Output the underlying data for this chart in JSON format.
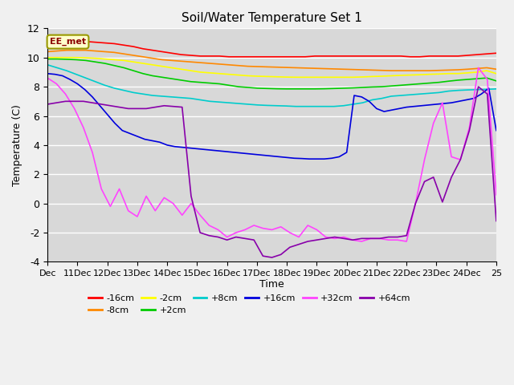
{
  "title": "Soil/Water Temperature Set 1",
  "xlabel": "Time",
  "ylabel": "Temperature (C)",
  "ylim": [
    -4,
    12
  ],
  "annotation": "EE_met",
  "x_ticks": [
    "Dec",
    "11Dec",
    "12Dec",
    "13Dec",
    "14Dec",
    "15Dec",
    "16Dec",
    "17Dec",
    "18Dec",
    "19Dec",
    "20Dec",
    "21Dec",
    "22Dec",
    "23Dec",
    "24Dec",
    "25"
  ],
  "series_order": [
    "-16cm",
    "-8cm",
    "-2cm",
    "+2cm",
    "+8cm",
    "+16cm",
    "+32cm",
    "+64cm"
  ],
  "series": {
    "-16cm": {
      "color": "#ff0000",
      "data": [
        10.9,
        10.95,
        11.0,
        11.05,
        11.1,
        11.05,
        11.0,
        10.95,
        10.85,
        10.75,
        10.6,
        10.5,
        10.4,
        10.3,
        10.2,
        10.15,
        10.1,
        10.1,
        10.1,
        10.05,
        10.05,
        10.05,
        10.05,
        10.05,
        10.05,
        10.05,
        10.05,
        10.05,
        10.1,
        10.1,
        10.1,
        10.1,
        10.1,
        10.1,
        10.1,
        10.1,
        10.1,
        10.1,
        10.05,
        10.05,
        10.1,
        10.1,
        10.1,
        10.1,
        10.15,
        10.2,
        10.25,
        10.3
      ]
    },
    "-8cm": {
      "color": "#ff8800",
      "data": [
        10.4,
        10.45,
        10.5,
        10.5,
        10.5,
        10.45,
        10.4,
        10.35,
        10.25,
        10.15,
        10.05,
        9.95,
        9.85,
        9.8,
        9.75,
        9.7,
        9.65,
        9.6,
        9.55,
        9.5,
        9.45,
        9.4,
        9.38,
        9.36,
        9.34,
        9.32,
        9.3,
        9.28,
        9.26,
        9.24,
        9.22,
        9.2,
        9.18,
        9.16,
        9.14,
        9.12,
        9.1,
        9.1,
        9.1,
        9.1,
        9.1,
        9.12,
        9.14,
        9.16,
        9.2,
        9.25,
        9.3,
        9.2
      ]
    },
    "-2cm": {
      "color": "#ffff00",
      "data": [
        10.0,
        10.0,
        10.0,
        10.0,
        9.98,
        9.95,
        9.9,
        9.85,
        9.8,
        9.7,
        9.6,
        9.5,
        9.4,
        9.3,
        9.2,
        9.1,
        9.0,
        8.95,
        8.9,
        8.85,
        8.8,
        8.75,
        8.72,
        8.7,
        8.68,
        8.66,
        8.65,
        8.65,
        8.65,
        8.65,
        8.65,
        8.65,
        8.65,
        8.67,
        8.7,
        8.72,
        8.75,
        8.78,
        8.8,
        8.82,
        8.85,
        8.87,
        8.9,
        8.9,
        8.95,
        9.0,
        9.1,
        8.9
      ]
    },
    "+2cm": {
      "color": "#00cc00",
      "data": [
        9.9,
        9.9,
        9.88,
        9.85,
        9.8,
        9.7,
        9.6,
        9.45,
        9.3,
        9.1,
        8.9,
        8.75,
        8.65,
        8.55,
        8.45,
        8.35,
        8.3,
        8.25,
        8.2,
        8.1,
        8.0,
        7.95,
        7.9,
        7.88,
        7.86,
        7.85,
        7.85,
        7.85,
        7.85,
        7.86,
        7.88,
        7.9,
        7.92,
        7.95,
        7.98,
        8.0,
        8.05,
        8.1,
        8.15,
        8.2,
        8.25,
        8.3,
        8.38,
        8.45,
        8.5,
        8.55,
        8.6,
        8.4
      ]
    },
    "+8cm": {
      "color": "#00cccc",
      "data": [
        9.5,
        9.3,
        9.1,
        8.85,
        8.6,
        8.35,
        8.1,
        7.9,
        7.75,
        7.6,
        7.5,
        7.4,
        7.35,
        7.3,
        7.25,
        7.2,
        7.1,
        7.0,
        6.95,
        6.9,
        6.85,
        6.8,
        6.75,
        6.72,
        6.7,
        6.68,
        6.65,
        6.65,
        6.65,
        6.65,
        6.65,
        6.7,
        6.8,
        6.9,
        7.1,
        7.2,
        7.35,
        7.4,
        7.45,
        7.5,
        7.55,
        7.6,
        7.7,
        7.75,
        7.78,
        7.8,
        7.82,
        7.85
      ]
    },
    "+16cm": {
      "color": "#0000dd",
      "data": [
        8.9,
        8.85,
        8.75,
        8.5,
        8.2,
        7.8,
        7.3,
        6.7,
        6.1,
        5.5,
        5.0,
        4.8,
        4.6,
        4.4,
        4.3,
        4.2,
        4.0,
        3.9,
        3.85,
        3.8,
        3.75,
        3.7,
        3.65,
        3.6,
        3.55,
        3.5,
        3.45,
        3.4,
        3.35,
        3.3,
        3.25,
        3.2,
        3.15,
        3.1,
        3.08,
        3.05,
        3.05,
        3.05,
        3.1,
        3.2,
        3.5,
        7.4,
        7.3,
        7.0,
        6.5,
        6.3,
        6.4,
        6.5,
        6.6,
        6.65,
        6.7,
        6.75,
        6.8,
        6.85,
        6.9,
        7.0,
        7.1,
        7.2,
        7.5,
        7.9,
        5.0
      ]
    },
    "+32cm": {
      "color": "#ff44ff",
      "data": [
        8.6,
        8.2,
        7.5,
        6.5,
        5.2,
        3.5,
        1.0,
        -0.2,
        1.0,
        -0.5,
        -0.9,
        0.5,
        -0.5,
        0.4,
        0.0,
        -0.8,
        0.0,
        -0.8,
        -1.5,
        -1.8,
        -2.3,
        -2.0,
        -1.8,
        -1.5,
        -1.7,
        -1.8,
        -1.6,
        -2.0,
        -2.3,
        -1.5,
        -1.8,
        -2.3,
        -2.4,
        -2.3,
        -2.5,
        -2.6,
        -2.4,
        -2.4,
        -2.5,
        -2.5,
        -2.6,
        0.0,
        3.0,
        5.5,
        6.9,
        3.2,
        3.0,
        5.2,
        9.3,
        8.5,
        0.6
      ]
    },
    "+64cm": {
      "color": "#8800aa",
      "data": [
        6.8,
        6.9,
        7.0,
        7.0,
        7.0,
        6.9,
        6.8,
        6.7,
        6.6,
        6.5,
        6.5,
        6.5,
        6.6,
        6.7,
        6.65,
        6.6,
        0.5,
        -2.0,
        -2.2,
        -2.3,
        -2.5,
        -2.3,
        -2.4,
        -2.5,
        -3.6,
        -3.7,
        -3.5,
        -3.0,
        -2.8,
        -2.6,
        -2.5,
        -2.4,
        -2.3,
        -2.4,
        -2.5,
        -2.4,
        -2.4,
        -2.4,
        -2.3,
        -2.3,
        -2.2,
        0.0,
        1.5,
        1.8,
        0.1,
        1.8,
        3.0,
        5.0,
        8.0,
        7.5,
        -1.2
      ]
    }
  },
  "legend": [
    {
      "label": "-16cm",
      "color": "#ff0000"
    },
    {
      "label": "-8cm",
      "color": "#ff8800"
    },
    {
      "label": "-2cm",
      "color": "#ffff00"
    },
    {
      "label": "+2cm",
      "color": "#00cc00"
    },
    {
      "label": "+8cm",
      "color": "#00cccc"
    },
    {
      "label": "+16cm",
      "color": "#0000dd"
    },
    {
      "label": "+32cm",
      "color": "#ff44ff"
    },
    {
      "label": "+64cm",
      "color": "#8800aa"
    }
  ],
  "bg_color": "#d8d8d8",
  "yticks": [
    -4,
    -2,
    0,
    2,
    4,
    6,
    8,
    10,
    12
  ]
}
